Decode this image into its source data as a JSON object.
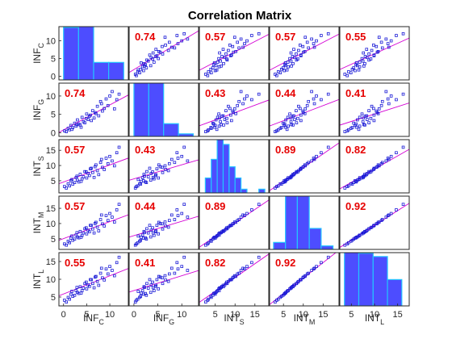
{
  "chart_data": {
    "type": "scatter",
    "title": "Correlation Matrix",
    "variables": [
      {
        "base": "INF",
        "sub": "C",
        "ticks": [
          0,
          5,
          10
        ],
        "lim": [
          -1,
          14
        ]
      },
      {
        "base": "INF",
        "sub": "G",
        "ticks": [
          0,
          5,
          10
        ],
        "lim": [
          -1,
          13.5
        ]
      },
      {
        "base": "INT",
        "sub": "S",
        "ticks": [
          5,
          10,
          15
        ],
        "lim": [
          1,
          18.5
        ]
      },
      {
        "base": "INT",
        "sub": "M",
        "ticks": [
          5,
          10,
          15
        ],
        "lim": [
          1.5,
          19
        ]
      },
      {
        "base": "INT",
        "sub": "L",
        "ticks": [
          5,
          10,
          15
        ],
        "lim": [
          2.5,
          17.5
        ]
      }
    ],
    "correlations": [
      [
        null,
        0.74,
        0.57,
        0.57,
        0.55
      ],
      [
        0.74,
        null,
        0.43,
        0.44,
        0.41
      ],
      [
        0.57,
        0.43,
        null,
        0.89,
        0.82
      ],
      [
        0.57,
        0.44,
        0.89,
        null,
        0.92
      ],
      [
        0.55,
        0.41,
        0.82,
        0.92,
        null
      ]
    ],
    "correlation_labels": [
      [
        "",
        "0.74",
        "0.57",
        "0.57",
        "0.55"
      ],
      [
        "0.74",
        "",
        "0.43",
        "0.44",
        "0.41"
      ],
      [
        "0.57",
        "0.43",
        "",
        "0.89",
        "0.82"
      ],
      [
        "0.57",
        "0.44",
        "0.89",
        "",
        "0.92"
      ],
      [
        "0.55",
        "0.41",
        "0.82",
        "0.92",
        ""
      ]
    ],
    "histograms": [
      {
        "edges": [
          0,
          3.25,
          6.5,
          9.75,
          13
        ],
        "counts": [
          15,
          16,
          5,
          5
        ]
      },
      {
        "edges": [
          0,
          3.1,
          6.2,
          9.3,
          12.4
        ],
        "counts": [
          22,
          22,
          5,
          1
        ]
      },
      {
        "edges": [
          2.5,
          4,
          5.5,
          7,
          8.5,
          10,
          11.5,
          13,
          14.5,
          16,
          17.5
        ],
        "counts": [
          4,
          9,
          15,
          13,
          7,
          4,
          1,
          0,
          0,
          1
        ]
      },
      {
        "edges": [
          2.5,
          5.5,
          8.5,
          11.5,
          14.5,
          17.5
        ],
        "counts": [
          2,
          16,
          16,
          6,
          1
        ]
      },
      {
        "edges": [
          3.5,
          6.6,
          9.7,
          12.8,
          15.9
        ],
        "counts": [
          17,
          16,
          15,
          8
        ]
      }
    ],
    "points": {
      "INF_C": [
        0.2,
        0.6,
        1.0,
        1.3,
        1.6,
        2.0,
        2.4,
        2.7,
        3.0,
        3.3,
        3.6,
        4.0,
        4.3,
        4.6,
        5.0,
        5.3,
        5.6,
        6.0,
        6.3,
        6.6,
        7.0,
        7.3,
        7.6,
        8.0,
        8.4,
        8.8,
        9.2,
        9.6,
        10.0,
        10.5,
        11.0,
        11.5,
        12.0,
        3.8,
        5.8,
        1.8,
        2.9,
        4.9,
        6.8,
        8.2
      ],
      "INF_G": [
        0.5,
        0.3,
        1.2,
        0.8,
        2.0,
        1.4,
        2.6,
        1.8,
        3.5,
        2.4,
        2.1,
        4.2,
        3.0,
        2.7,
        5.1,
        3.6,
        4.5,
        3.3,
        6.0,
        4.0,
        5.2,
        7.2,
        4.6,
        8.5,
        5.9,
        6.6,
        9.2,
        7.4,
        10.0,
        11.2,
        6.5,
        9.0,
        10.5,
        1.5,
        4.8,
        0.9,
        2.2,
        3.9,
        5.5,
        7.9
      ],
      "INT_S": [
        3.1,
        2.6,
        4.0,
        3.3,
        5.0,
        3.9,
        4.4,
        6.0,
        5.2,
        4.6,
        7.1,
        5.6,
        6.3,
        8.0,
        5.9,
        7.4,
        6.7,
        9.1,
        7.7,
        6.1,
        10.2,
        8.3,
        7.0,
        11.0,
        9.4,
        8.7,
        12.4,
        10.6,
        13.0,
        11.5,
        9.9,
        14.2,
        16.0,
        4.8,
        8.9,
        5.4,
        6.5,
        7.9,
        9.6,
        12.0
      ],
      "INT_M": [
        3.3,
        2.9,
        4.2,
        3.7,
        5.2,
        4.5,
        4.9,
        6.2,
        5.6,
        5.3,
        7.4,
        6.1,
        6.9,
        8.3,
        6.6,
        7.8,
        7.3,
        9.4,
        8.2,
        6.9,
        10.4,
        8.8,
        7.6,
        11.3,
        9.9,
        9.2,
        12.6,
        11.0,
        13.3,
        12.1,
        10.5,
        14.5,
        16.3,
        5.5,
        9.4,
        5.9,
        7.0,
        8.6,
        10.0,
        12.8
      ],
      "INT_L": [
        4.1,
        3.6,
        4.9,
        4.4,
        5.8,
        5.2,
        5.5,
        6.8,
        6.3,
        6.0,
        7.9,
        6.8,
        7.5,
        8.8,
        7.3,
        8.4,
        8.0,
        9.9,
        8.8,
        7.6,
        10.8,
        9.4,
        8.3,
        11.7,
        10.4,
        9.8,
        12.9,
        11.5,
        13.6,
        12.5,
        11.0,
        14.7,
        16.2,
        6.1,
        9.9,
        6.6,
        7.7,
        9.2,
        10.6,
        13.1
      ]
    },
    "colors": {
      "scatter": "#1a1ad6",
      "fit_line": "#d400d4",
      "hist_fill": "#4d4dff",
      "hist_edge": "#23c4ff",
      "corr_text": "#e60000"
    }
  }
}
